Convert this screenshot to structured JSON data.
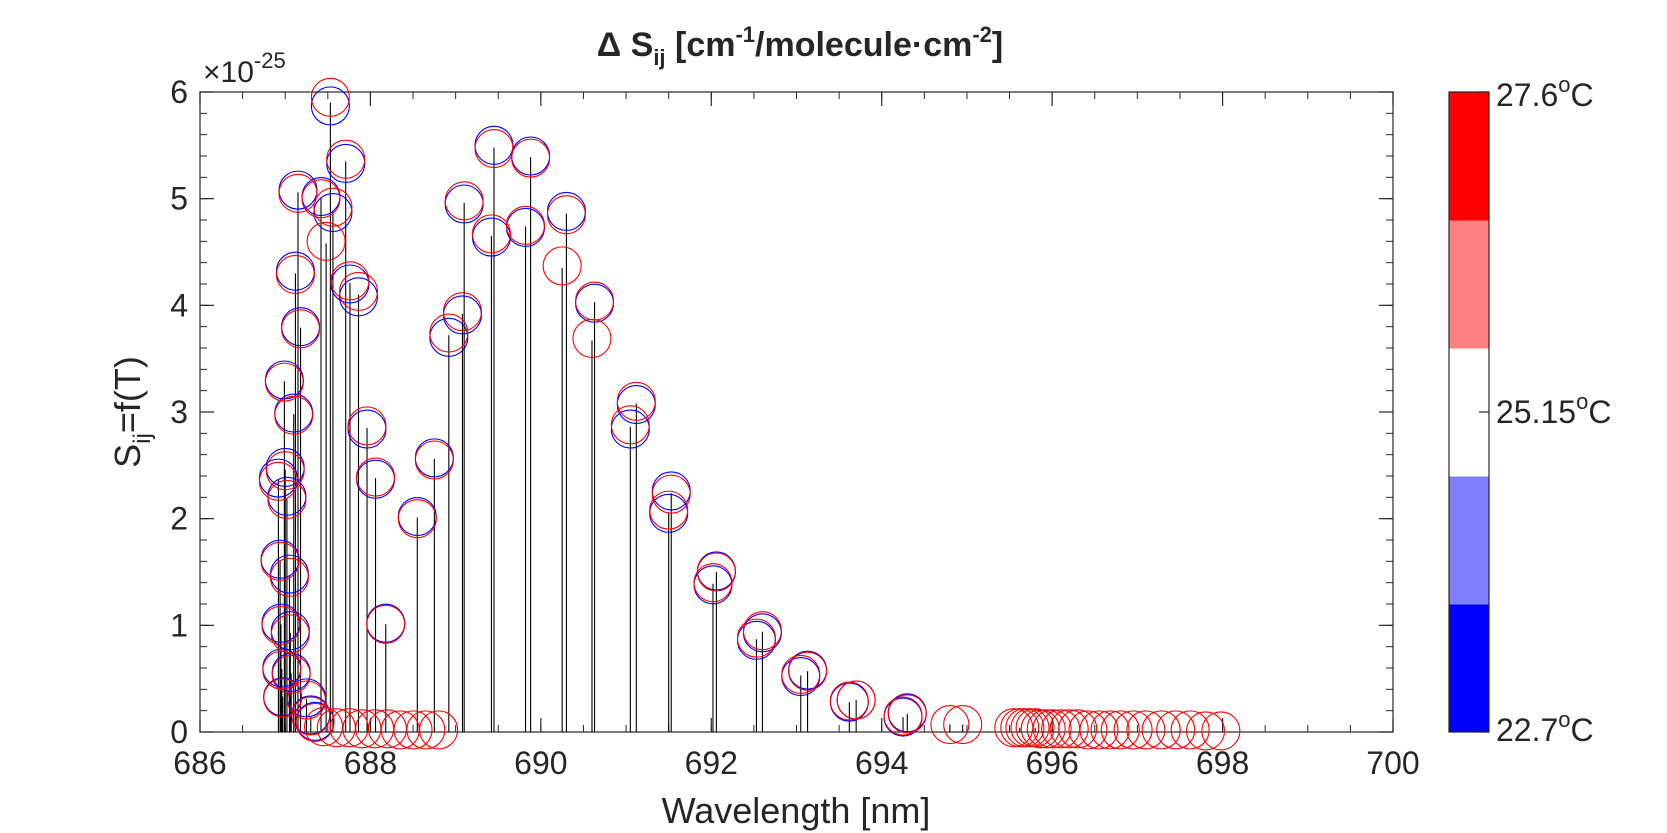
{
  "chart_data": {
    "type": "stem",
    "title_main": "Δ S",
    "title_sub": "ij",
    "title_rest_a": " [cm",
    "title_sup1": "-1",
    "title_rest_b": "/molecule·cm",
    "title_sup2": "-2",
    "title_end": "]",
    "xlabel": "Wavelength [nm]",
    "ylabel_main": "S",
    "ylabel_sub": "ij",
    "ylabel_rest": "=f(T)",
    "exponent_prefix": "×10",
    "exponent_power": "-25",
    "xlim": [
      686,
      700
    ],
    "ylim": [
      0,
      6
    ],
    "x_ticks": [
      "686",
      "688",
      "690",
      "692",
      "694",
      "696",
      "698",
      "700"
    ],
    "y_ticks": [
      "0",
      "1",
      "2",
      "3",
      "4",
      "5",
      "6"
    ],
    "colorbar": {
      "colors": [
        "#0000ff",
        "#8080ff",
        "#ffffff",
        "#ff8080",
        "#ff0000"
      ],
      "label_top": "27.6",
      "label_mid": "25.15",
      "label_bottom": "22.7",
      "degree_sup": "o",
      "unit": "C"
    },
    "series": [
      {
        "color": "#0000ff",
        "points": [
          [
            686.92,
            2.38
          ],
          [
            686.94,
            1.62
          ],
          [
            686.95,
            1.02
          ],
          [
            686.96,
            0.6
          ],
          [
            686.97,
            0.33
          ],
          [
            686.99,
            3.3
          ],
          [
            687.0,
            2.48
          ],
          [
            687.02,
            2.21
          ],
          [
            687.05,
            1.48
          ],
          [
            687.06,
            0.95
          ],
          [
            687.07,
            0.56
          ],
          [
            687.1,
            2.99
          ],
          [
            687.12,
            4.32
          ],
          [
            687.15,
            5.08
          ],
          [
            687.18,
            3.8
          ],
          [
            687.25,
            0.32
          ],
          [
            687.3,
            0.16
          ],
          [
            687.35,
            0.1
          ],
          [
            687.42,
            5.02
          ],
          [
            687.53,
            5.87
          ],
          [
            687.56,
            4.87
          ],
          [
            687.71,
            5.33
          ],
          [
            687.76,
            4.2
          ],
          [
            687.86,
            4.08
          ],
          [
            687.96,
            2.84
          ],
          [
            688.06,
            2.37
          ],
          [
            688.18,
            1.02
          ],
          [
            688.55,
            2.02
          ],
          [
            688.75,
            2.57
          ],
          [
            688.92,
            3.7
          ],
          [
            689.08,
            3.91
          ],
          [
            689.1,
            4.95
          ],
          [
            689.42,
            4.64
          ],
          [
            689.45,
            5.5
          ],
          [
            689.82,
            4.73
          ],
          [
            689.88,
            5.4
          ],
          [
            690.3,
            4.88
          ],
          [
            690.63,
            4.02
          ],
          [
            691.05,
            2.84
          ],
          [
            691.12,
            3.07
          ],
          [
            691.5,
            2.05
          ],
          [
            691.53,
            2.26
          ],
          [
            692.02,
            1.38
          ],
          [
            692.06,
            1.51
          ],
          [
            692.53,
            0.86
          ],
          [
            692.6,
            0.93
          ],
          [
            693.05,
            0.52
          ],
          [
            693.13,
            0.58
          ],
          [
            693.62,
            0.28
          ],
          [
            693.7,
            0.3
          ],
          [
            694.25,
            0.14
          ],
          [
            694.3,
            0.18
          ]
        ]
      },
      {
        "color": "#ff0000",
        "points": [
          [
            686.92,
            2.35
          ],
          [
            686.94,
            1.6
          ],
          [
            686.95,
            1.0
          ],
          [
            686.96,
            0.58
          ],
          [
            686.97,
            0.32
          ],
          [
            686.99,
            3.28
          ],
          [
            687.0,
            2.45
          ],
          [
            687.02,
            2.18
          ],
          [
            687.05,
            1.45
          ],
          [
            687.06,
            0.92
          ],
          [
            687.07,
            0.54
          ],
          [
            687.1,
            2.97
          ],
          [
            687.12,
            4.29
          ],
          [
            687.15,
            5.05
          ],
          [
            687.18,
            3.78
          ],
          [
            687.25,
            0.3
          ],
          [
            687.3,
            0.15
          ],
          [
            687.35,
            0.09
          ],
          [
            687.42,
            5.0
          ],
          [
            687.48,
            4.6
          ],
          [
            687.53,
            5.95
          ],
          [
            687.56,
            4.92
          ],
          [
            687.71,
            5.37
          ],
          [
            687.76,
            4.23
          ],
          [
            687.86,
            4.13
          ],
          [
            687.96,
            2.87
          ],
          [
            688.06,
            2.39
          ],
          [
            688.18,
            1.01
          ],
          [
            688.55,
            2.0
          ],
          [
            688.75,
            2.55
          ],
          [
            688.92,
            3.74
          ],
          [
            689.08,
            3.94
          ],
          [
            689.1,
            4.98
          ],
          [
            689.42,
            4.67
          ],
          [
            689.45,
            5.47
          ],
          [
            689.82,
            4.75
          ],
          [
            689.88,
            5.38
          ],
          [
            690.25,
            4.37
          ],
          [
            690.3,
            4.85
          ],
          [
            690.6,
            3.69
          ],
          [
            690.63,
            4.04
          ],
          [
            691.05,
            2.88
          ],
          [
            691.12,
            3.1
          ],
          [
            691.5,
            2.08
          ],
          [
            691.53,
            2.23
          ],
          [
            692.02,
            1.4
          ],
          [
            692.06,
            1.5
          ],
          [
            692.53,
            0.88
          ],
          [
            692.6,
            0.95
          ],
          [
            693.05,
            0.54
          ],
          [
            693.13,
            0.57
          ],
          [
            693.62,
            0.29
          ],
          [
            693.7,
            0.3
          ],
          [
            694.25,
            0.15
          ],
          [
            694.3,
            0.17
          ],
          [
            687.45,
            0.05
          ],
          [
            687.6,
            0.04
          ],
          [
            687.75,
            0.04
          ],
          [
            687.9,
            0.03
          ],
          [
            688.05,
            0.03
          ],
          [
            688.2,
            0.03
          ],
          [
            688.35,
            0.02
          ],
          [
            688.5,
            0.02
          ],
          [
            688.65,
            0.02
          ],
          [
            688.8,
            0.02
          ],
          [
            694.8,
            0.07
          ],
          [
            694.95,
            0.07
          ],
          [
            695.55,
            0.04
          ],
          [
            695.62,
            0.04
          ],
          [
            695.68,
            0.04
          ],
          [
            695.74,
            0.04
          ],
          [
            695.8,
            0.04
          ],
          [
            695.86,
            0.03
          ],
          [
            695.93,
            0.03
          ],
          [
            696.0,
            0.03
          ],
          [
            696.1,
            0.03
          ],
          [
            696.2,
            0.03
          ],
          [
            696.3,
            0.03
          ],
          [
            696.42,
            0.02
          ],
          [
            696.55,
            0.02
          ],
          [
            696.68,
            0.02
          ],
          [
            696.8,
            0.02
          ],
          [
            696.95,
            0.02
          ],
          [
            697.1,
            0.02
          ],
          [
            697.28,
            0.02
          ],
          [
            697.45,
            0.02
          ],
          [
            697.62,
            0.02
          ],
          [
            697.8,
            0.01
          ],
          [
            697.98,
            0.01
          ]
        ]
      }
    ],
    "stems": [
      [
        686.92,
        2.37
      ],
      [
        686.94,
        1.61
      ],
      [
        686.95,
        1.01
      ],
      [
        686.96,
        0.59
      ],
      [
        686.97,
        0.33
      ],
      [
        686.99,
        3.29
      ],
      [
        687.0,
        2.46
      ],
      [
        687.02,
        2.19
      ],
      [
        687.05,
        1.46
      ],
      [
        687.06,
        0.93
      ],
      [
        687.07,
        0.55
      ],
      [
        687.1,
        2.98
      ],
      [
        687.12,
        4.3
      ],
      [
        687.15,
        5.06
      ],
      [
        687.18,
        3.79
      ],
      [
        687.25,
        0.31
      ],
      [
        687.3,
        0.15
      ],
      [
        687.42,
        5.01
      ],
      [
        687.48,
        4.58
      ],
      [
        687.53,
        5.9
      ],
      [
        687.56,
        4.89
      ],
      [
        687.71,
        5.35
      ],
      [
        687.76,
        4.21
      ],
      [
        687.86,
        4.1
      ],
      [
        687.96,
        2.85
      ],
      [
        688.06,
        2.38
      ],
      [
        688.18,
        1.01
      ],
      [
        688.55,
        2.01
      ],
      [
        688.75,
        2.56
      ],
      [
        688.92,
        3.72
      ],
      [
        689.08,
        3.92
      ],
      [
        689.1,
        4.96
      ],
      [
        689.42,
        4.65
      ],
      [
        689.45,
        5.48
      ],
      [
        689.82,
        4.74
      ],
      [
        689.88,
        5.39
      ],
      [
        690.25,
        4.35
      ],
      [
        690.3,
        4.86
      ],
      [
        690.6,
        3.67
      ],
      [
        690.63,
        4.03
      ],
      [
        691.05,
        2.86
      ],
      [
        691.12,
        3.08
      ],
      [
        691.5,
        2.06
      ],
      [
        691.53,
        2.24
      ],
      [
        692.02,
        1.39
      ],
      [
        692.06,
        1.5
      ],
      [
        692.53,
        0.87
      ],
      [
        692.6,
        0.94
      ],
      [
        693.05,
        0.53
      ],
      [
        693.13,
        0.57
      ],
      [
        693.62,
        0.28
      ],
      [
        693.7,
        0.3
      ],
      [
        694.25,
        0.14
      ],
      [
        694.3,
        0.17
      ],
      [
        694.8,
        0.07
      ],
      [
        694.95,
        0.07
      ],
      [
        695.62,
        0.04
      ],
      [
        695.8,
        0.04
      ],
      [
        696.0,
        0.03
      ]
    ]
  }
}
